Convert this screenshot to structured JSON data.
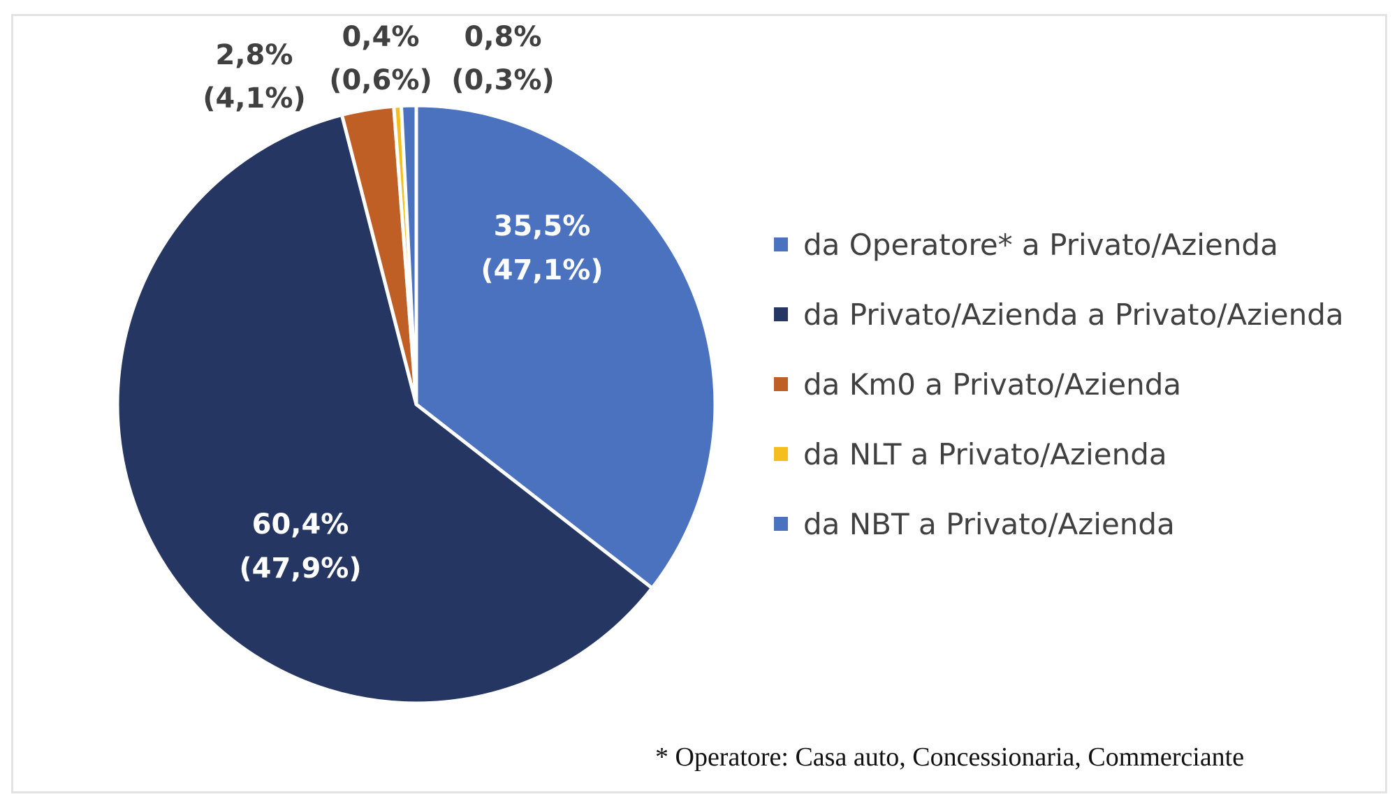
{
  "chart_data": {
    "type": "pie",
    "title": "",
    "categories": [
      "da Operatore* a Privato/Azienda",
      "da Privato/Azienda a Privato/Azienda",
      "da Km0 a Privato/Azienda",
      "da NLT a Privato/Azienda",
      "da NBT a Privato/Azienda"
    ],
    "values": [
      35.5,
      60.4,
      2.8,
      0.4,
      0.8
    ],
    "secondary_values": [
      47.1,
      47.9,
      4.1,
      0.6,
      0.3
    ],
    "labels": [
      {
        "value": "35,5%",
        "secondary": "(47,1%)"
      },
      {
        "value": "60,4%",
        "secondary": "(47,9%)"
      },
      {
        "value": "2,8%",
        "secondary": "(4,1%)"
      },
      {
        "value": "0,4%",
        "secondary": "(0,6%)"
      },
      {
        "value": "0,8%",
        "secondary": "(0,3%)"
      }
    ],
    "colors": [
      "#4a72bf",
      "#243661",
      "#c05f25",
      "#f4bf1e",
      "#4a72bf"
    ],
    "label_colors": [
      "#ffffff",
      "#ffffff",
      "#404040",
      "#404040",
      "#404040"
    ],
    "legend_position": "right"
  },
  "legend": {
    "items": [
      {
        "label": "da Operatore* a Privato/Azienda",
        "color": "#4a72bf"
      },
      {
        "label": "da Privato/Azienda a Privato/Azienda",
        "color": "#243661"
      },
      {
        "label": "da Km0 a Privato/Azienda",
        "color": "#c05f25"
      },
      {
        "label": "da NLT a Privato/Azienda",
        "color": "#f4bf1e"
      },
      {
        "label": "da NBT a Privato/Azienda",
        "color": "#4a72bf"
      }
    ]
  },
  "footnote": "* Operatore: Casa auto, Concessionaria, Commerciante"
}
